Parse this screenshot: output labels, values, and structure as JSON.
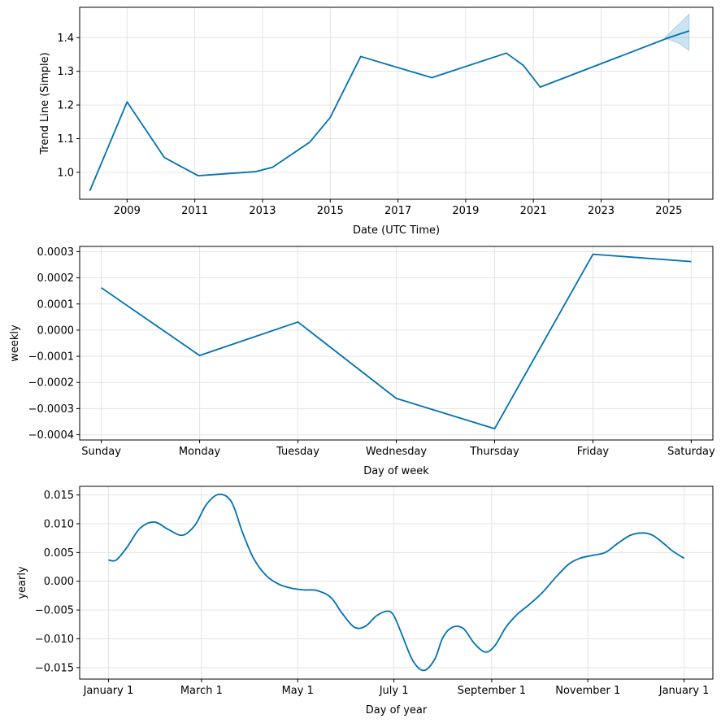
{
  "chart_data": [
    {
      "type": "line",
      "title": "",
      "xlabel": "Date (UTC Time)",
      "ylabel": "Trend Line (Simple)",
      "xlim": [
        2007.6,
        2026.3
      ],
      "ylim": [
        0.92,
        1.49
      ],
      "grid": true,
      "x_ticks": [
        2009,
        2011,
        2013,
        2015,
        2017,
        2019,
        2021,
        2023,
        2025
      ],
      "x_tick_labels": [
        "2009",
        "2011",
        "2013",
        "2015",
        "2017",
        "2019",
        "2021",
        "2023",
        "2025"
      ],
      "y_ticks": [
        1.0,
        1.1,
        1.2,
        1.3,
        1.4
      ],
      "y_tick_labels": [
        "1.0",
        "1.1",
        "1.2",
        "1.3",
        "1.4"
      ],
      "series": [
        {
          "x": [
            2007.9,
            2009.0,
            2010.1,
            2011.1,
            2012.8,
            2013.3,
            2014.4,
            2015.0,
            2015.9,
            2018.0,
            2020.2,
            2020.7,
            2021.2,
            2025.0,
            2025.6
          ],
          "y": [
            0.945,
            1.209,
            1.044,
            0.99,
            1.002,
            1.015,
            1.09,
            1.163,
            1.344,
            1.281,
            1.354,
            1.318,
            1.253,
            1.4,
            1.42
          ]
        }
      ],
      "uncertainty_band": {
        "x": [
          2024.9,
          2025.3,
          2025.6
        ],
        "lower": [
          1.398,
          1.383,
          1.362
        ],
        "upper": [
          1.402,
          1.44,
          1.47
        ]
      },
      "color": "#0072B2"
    },
    {
      "type": "line",
      "title": "",
      "xlabel": "Day of week",
      "ylabel": "weekly",
      "ylim": [
        -0.00042,
        0.00032
      ],
      "grid": true,
      "categories": [
        "Sunday",
        "Monday",
        "Tuesday",
        "Wednesday",
        "Thursday",
        "Friday",
        "Saturday"
      ],
      "y_ticks": [
        -0.0004,
        -0.0003,
        -0.0002,
        -0.0001,
        0.0,
        0.0001,
        0.0002,
        0.0003
      ],
      "y_tick_labels": [
        "−0.0004",
        "−0.0003",
        "−0.0002",
        "−0.0001",
        "0.0000",
        "0.0001",
        "0.0002",
        "0.0003"
      ],
      "values": [
        0.000162,
        -9.7e-05,
        3.1e-05,
        -0.000261,
        -0.000377,
        0.00029,
        0.000262
      ],
      "color": "#0072B2"
    },
    {
      "type": "line",
      "title": "",
      "xlabel": "Day of year",
      "ylabel": "yearly",
      "ylim": [
        -0.017,
        0.0165
      ],
      "grid": true,
      "x_ticks": [
        0,
        59,
        120,
        181,
        243,
        304,
        365
      ],
      "x_tick_labels": [
        "January 1",
        "March 1",
        "May 1",
        "July 1",
        "September 1",
        "November 1",
        "January 1"
      ],
      "y_ticks": [
        -0.015,
        -0.01,
        -0.005,
        0.0,
        0.005,
        0.01,
        0.015
      ],
      "y_tick_labels": [
        "−0.015",
        "−0.010",
        "−0.005",
        "0.000",
        "0.005",
        "0.010",
        "0.015"
      ],
      "x": [
        0,
        5,
        12,
        20,
        29,
        38,
        47,
        55,
        62,
        70,
        78,
        85,
        92,
        100,
        108,
        116,
        124,
        132,
        141,
        148,
        156,
        163,
        170,
        177,
        181,
        186,
        193,
        200,
        207,
        212,
        218,
        225,
        232,
        239,
        245,
        252,
        259,
        267,
        275,
        284,
        292,
        299,
        307,
        315,
        323,
        331,
        339,
        345,
        351,
        358,
        365
      ],
      "values": [
        0.0037,
        0.0037,
        0.006,
        0.0092,
        0.0103,
        0.009,
        0.008,
        0.0098,
        0.0133,
        0.0151,
        0.0138,
        0.0085,
        0.004,
        0.001,
        -0.0005,
        -0.0012,
        -0.0015,
        -0.0016,
        -0.0028,
        -0.0055,
        -0.008,
        -0.0078,
        -0.006,
        -0.0052,
        -0.006,
        -0.0092,
        -0.0138,
        -0.0155,
        -0.0135,
        -0.0098,
        -0.008,
        -0.0082,
        -0.0108,
        -0.0123,
        -0.0112,
        -0.008,
        -0.0058,
        -0.004,
        -0.002,
        0.0008,
        0.003,
        0.004,
        0.0045,
        0.005,
        0.0066,
        0.008,
        0.0084,
        0.008,
        0.0068,
        0.0052,
        0.004
      ],
      "color": "#0072B2"
    }
  ]
}
